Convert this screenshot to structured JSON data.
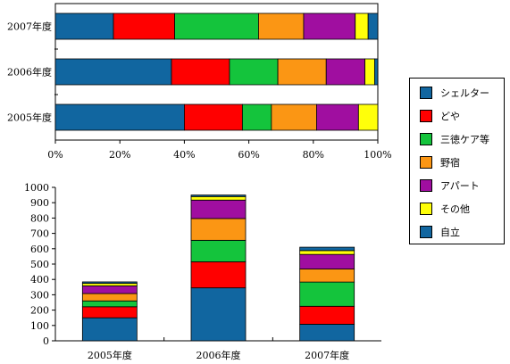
{
  "chart_data": [
    {
      "type": "bar",
      "orientation": "horizontal",
      "stacked": "percent",
      "categories": [
        "2007年度",
        "2006年度",
        "2005年度"
      ],
      "xlim": [
        0,
        100
      ],
      "xticks": [
        "0%",
        "20%",
        "40%",
        "60%",
        "80%",
        "100%"
      ],
      "grid": false,
      "legend": "right",
      "series": [
        {
          "name": "シェルター",
          "values": [
            18,
            36,
            40
          ]
        },
        {
          "name": "どや",
          "values": [
            19,
            18,
            18
          ]
        },
        {
          "name": "三徳ケア等",
          "values": [
            26,
            15,
            9
          ]
        },
        {
          "name": "野宿",
          "values": [
            14,
            15,
            14
          ]
        },
        {
          "name": "アパート",
          "values": [
            16,
            12,
            13
          ]
        },
        {
          "name": "その他",
          "values": [
            4,
            3,
            6
          ]
        },
        {
          "name": "自立",
          "values": [
            3,
            1,
            0
          ]
        }
      ]
    },
    {
      "type": "bar",
      "stacked": true,
      "categories": [
        "2005年度",
        "2006年度",
        "2007年度"
      ],
      "ylim": [
        0,
        1000
      ],
      "yticks": [
        0,
        100,
        200,
        300,
        400,
        500,
        600,
        700,
        800,
        900,
        1000
      ],
      "grid": false,
      "series": [
        {
          "name": "自立",
          "values": [
            150,
            345,
            108
          ]
        },
        {
          "name": "どや",
          "values": [
            72,
            170,
            117
          ]
        },
        {
          "name": "三徳ケア等",
          "values": [
            38,
            140,
            158
          ]
        },
        {
          "name": "野宿",
          "values": [
            48,
            142,
            85
          ]
        },
        {
          "name": "アパート",
          "values": [
            50,
            120,
            95
          ]
        },
        {
          "name": "その他",
          "values": [
            16,
            23,
            25
          ]
        },
        {
          "name": "シェルター",
          "values": [
            10,
            10,
            22
          ]
        }
      ]
    }
  ],
  "legend": {
    "items": [
      {
        "label": "シェルター",
        "color": "#1166a0"
      },
      {
        "label": "どや",
        "color": "#ff0000"
      },
      {
        "label": "三徳ケア等",
        "color": "#14c43c"
      },
      {
        "label": "野宿",
        "color": "#fb9614"
      },
      {
        "label": "アパート",
        "color": "#a00ea0"
      },
      {
        "label": "その他",
        "color": "#ffff0a"
      },
      {
        "label": "自立",
        "color": "#1166a0"
      }
    ]
  }
}
